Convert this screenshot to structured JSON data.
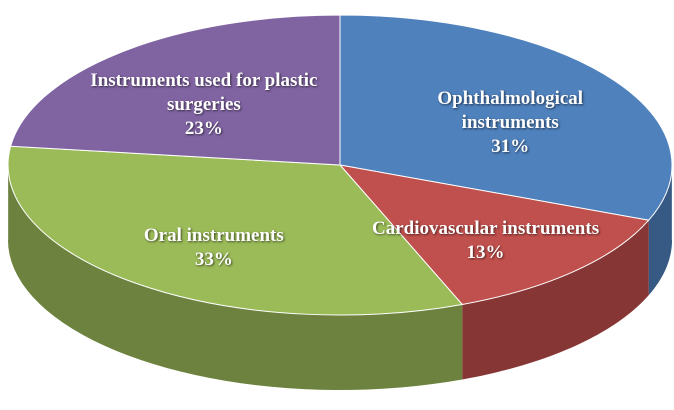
{
  "chart_data": {
    "type": "pie",
    "categories": [
      "Ophthalmological instruments",
      "Cardiovascular instruments",
      "Oral instruments",
      "Instruments used for plastic surgeries"
    ],
    "values": [
      31,
      13,
      33,
      23
    ],
    "value_labels": [
      "31%",
      "13%",
      "33%",
      "23%"
    ],
    "colors": [
      "#4f81bd",
      "#c0504d",
      "#9bbb59",
      "#8064a2"
    ],
    "three_d": true
  }
}
